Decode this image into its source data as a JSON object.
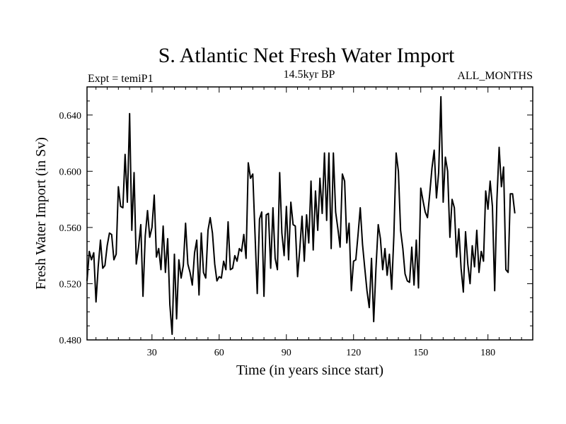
{
  "chart_data": {
    "type": "line",
    "title": "S. Atlantic Net Fresh Water Import",
    "left_subtitle": "Expt = temiP1",
    "center_subtitle": "14.5kyr BP",
    "right_subtitle": "ALL_MONTHS",
    "xlabel": "Time (in years since start)",
    "ylabel": "Fresh Water Import (in Sv)",
    "xlim": [
      1,
      200
    ],
    "ylim": [
      0.48,
      0.66
    ],
    "xticks": [
      30,
      60,
      90,
      120,
      150,
      180
    ],
    "yticks": [
      0.48,
      0.52,
      0.56,
      0.6,
      0.64
    ],
    "ytick_labels": [
      "0.480",
      "0.520",
      "0.560",
      "0.600",
      "0.640"
    ],
    "grid": false,
    "series": [
      {
        "name": "Fresh Water Import",
        "x_start": 1,
        "x_step": 1,
        "values": [
          0.522,
          0.543,
          0.537,
          0.542,
          0.507,
          0.532,
          0.551,
          0.531,
          0.533,
          0.547,
          0.556,
          0.555,
          0.537,
          0.541,
          0.589,
          0.575,
          0.574,
          0.612,
          0.578,
          0.641,
          0.558,
          0.599,
          0.534,
          0.546,
          0.562,
          0.511,
          0.554,
          0.572,
          0.553,
          0.56,
          0.583,
          0.539,
          0.545,
          0.53,
          0.561,
          0.528,
          0.552,
          0.505,
          0.484,
          0.541,
          0.495,
          0.537,
          0.524,
          0.533,
          0.563,
          0.534,
          0.528,
          0.519,
          0.542,
          0.551,
          0.512,
          0.556,
          0.528,
          0.524,
          0.558,
          0.567,
          0.556,
          0.534,
          0.522,
          0.525,
          0.524,
          0.536,
          0.53,
          0.564,
          0.53,
          0.531,
          0.54,
          0.536,
          0.545,
          0.543,
          0.555,
          0.538,
          0.606,
          0.595,
          0.598,
          0.556,
          0.513,
          0.566,
          0.571,
          0.511,
          0.569,
          0.57,
          0.531,
          0.574,
          0.538,
          0.53,
          0.599,
          0.556,
          0.54,
          0.575,
          0.537,
          0.578,
          0.562,
          0.561,
          0.525,
          0.545,
          0.568,
          0.536,
          0.569,
          0.549,
          0.593,
          0.544,
          0.586,
          0.558,
          0.595,
          0.57,
          0.613,
          0.565,
          0.613,
          0.545,
          0.613,
          0.571,
          0.559,
          0.546,
          0.598,
          0.593,
          0.549,
          0.563,
          0.515,
          0.536,
          0.537,
          0.555,
          0.574,
          0.548,
          0.531,
          0.515,
          0.503,
          0.538,
          0.493,
          0.531,
          0.562,
          0.552,
          0.53,
          0.545,
          0.526,
          0.541,
          0.516,
          0.554,
          0.613,
          0.6,
          0.558,
          0.545,
          0.527,
          0.522,
          0.521,
          0.546,
          0.519,
          0.551,
          0.517,
          0.588,
          0.579,
          0.571,
          0.567,
          0.584,
          0.602,
          0.615,
          0.581,
          0.599,
          0.653,
          0.578,
          0.61,
          0.6,
          0.553,
          0.58,
          0.574,
          0.539,
          0.559,
          0.531,
          0.514,
          0.557,
          0.534,
          0.52,
          0.547,
          0.532,
          0.558,
          0.528,
          0.543,
          0.536,
          0.586,
          0.573,
          0.593,
          0.575,
          0.515,
          0.579,
          0.617,
          0.589,
          0.603,
          0.53,
          0.528,
          0.584,
          0.584,
          0.57
        ]
      }
    ]
  }
}
